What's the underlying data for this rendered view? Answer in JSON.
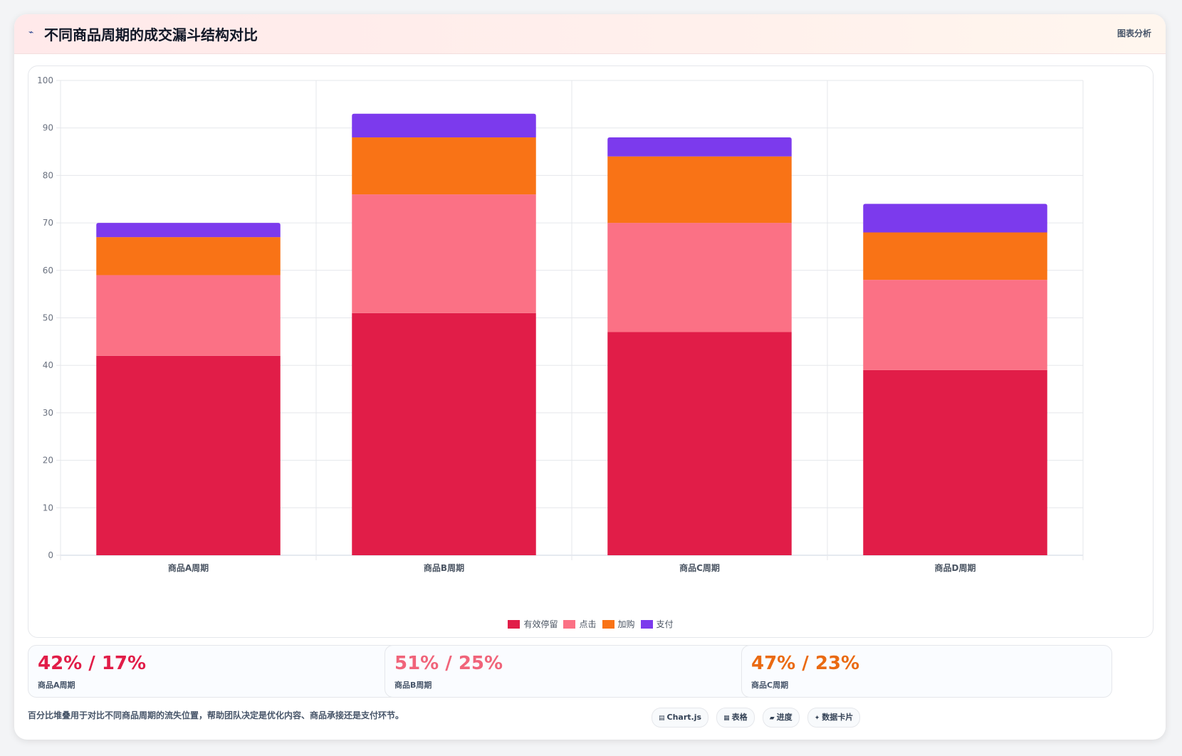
{
  "header": {
    "icon": "chart-line-icon",
    "icon_glyph": "⌁",
    "title": "不同商品周期的成交漏斗结构对比",
    "meta": "图表分析"
  },
  "chart_data": {
    "type": "bar",
    "stacked": true,
    "categories": [
      "商品A周期",
      "商品B周期",
      "商品C周期",
      "商品D周期"
    ],
    "series": [
      {
        "name": "有效停留",
        "color": "#e11d48",
        "values": [
          42,
          51,
          47,
          39
        ]
      },
      {
        "name": "点击",
        "color": "#fb7185",
        "values": [
          17,
          25,
          23,
          19
        ]
      },
      {
        "name": "加购",
        "color": "#f97316",
        "values": [
          8,
          12,
          14,
          10
        ]
      },
      {
        "name": "支付",
        "color": "#7c3aed",
        "values": [
          3,
          5,
          4,
          6
        ]
      }
    ],
    "ylim": [
      0,
      100
    ],
    "yticks": [
      0,
      10,
      20,
      30,
      40,
      50,
      60,
      70,
      80,
      90,
      100
    ],
    "grid": true,
    "legend_position": "bottom"
  },
  "stats": [
    {
      "value": "42% / 17%",
      "label": "商品A周期",
      "color": "#e11d48"
    },
    {
      "value": "51% / 25%",
      "label": "商品B周期",
      "color": "#f0647a"
    },
    {
      "value": "47% / 23%",
      "label": "商品C周期",
      "color": "#ea6a12"
    }
  ],
  "footer": {
    "note": "百分比堆叠用于对比不同商品周期的流失位置，帮助团队决定是优化内容、商品承接还是支付环节。",
    "chips": [
      {
        "icon": "chart-icon",
        "glyph": "▤",
        "label": "Chart.js"
      },
      {
        "icon": "table-icon",
        "glyph": "▦",
        "label": "表格"
      },
      {
        "icon": "progress-icon",
        "glyph": "▰",
        "label": "进度"
      },
      {
        "icon": "sparkle-icon",
        "glyph": "✦",
        "label": "数据卡片"
      }
    ]
  }
}
